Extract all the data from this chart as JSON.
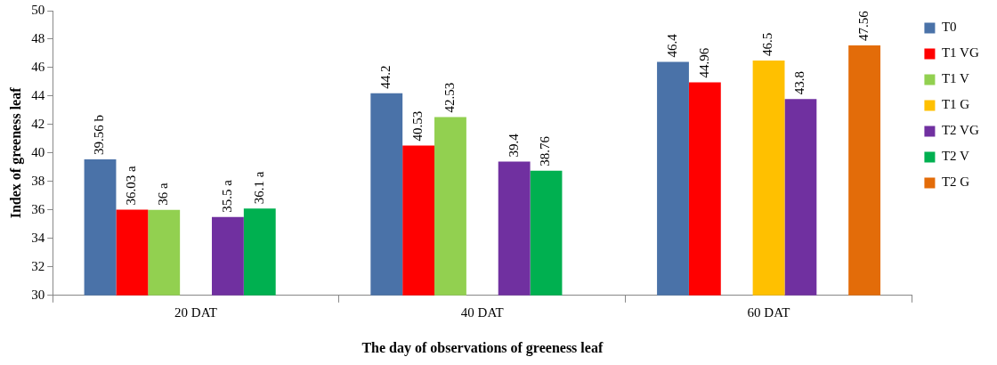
{
  "chart_data": {
    "type": "bar",
    "xlabel": "The day of observations of greeness leaf",
    "ylabel": "Index of greeness leaf",
    "categories": [
      "20 DAT",
      "40 DAT",
      "60 DAT"
    ],
    "series": [
      {
        "name": "T0",
        "color": "#4a72a8",
        "values": [
          39.56,
          44.2,
          46.4
        ],
        "value_labels": [
          "39.56 b",
          "44.2",
          "46.4"
        ]
      },
      {
        "name": "T1 VG",
        "color": "#ff0000",
        "values": [
          36.03,
          40.53,
          44.96
        ],
        "value_labels": [
          "36.03 a",
          "40.53",
          "44.96"
        ]
      },
      {
        "name": "T1 V",
        "color": "#92d050",
        "values": [
          36,
          42.53,
          null
        ],
        "value_labels": [
          "36 a",
          "42.53",
          null
        ]
      },
      {
        "name": "T1 G",
        "color": "#ffc000",
        "values": [
          null,
          null,
          46.5
        ],
        "value_labels": [
          null,
          null,
          "46.5"
        ]
      },
      {
        "name": "T2 VG",
        "color": "#7030a0",
        "values": [
          35.5,
          39.4,
          43.8
        ],
        "value_labels": [
          "35.5 a",
          "39.4",
          "43.8"
        ]
      },
      {
        "name": "T2 V",
        "color": "#00b050",
        "values": [
          36.1,
          38.76,
          null
        ],
        "value_labels": [
          "36.1 a",
          "38.76",
          null
        ]
      },
      {
        "name": "T2 G",
        "color": "#e36c09",
        "values": [
          null,
          null,
          47.56
        ],
        "value_labels": [
          null,
          null,
          "47.56"
        ]
      }
    ],
    "ylim": [
      30,
      50
    ],
    "yticks": [
      30,
      32,
      34,
      36,
      38,
      40,
      42,
      44,
      46,
      48,
      50
    ],
    "grid": false,
    "legend": "right"
  }
}
